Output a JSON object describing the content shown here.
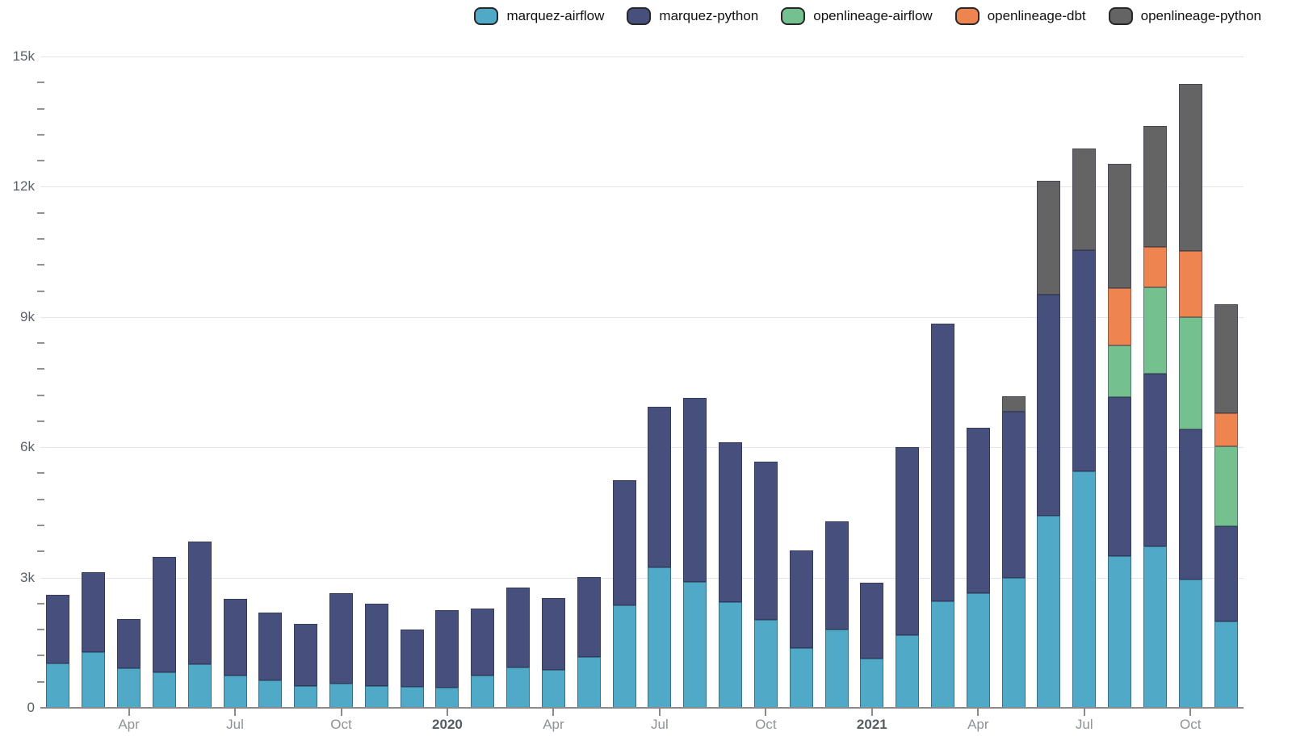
{
  "legend": {
    "items": [
      {
        "label": "marquez-airflow"
      },
      {
        "label": "marquez-python"
      },
      {
        "label": "openlineage-airflow"
      },
      {
        "label": "openlineage-dbt"
      },
      {
        "label": "openlineage-python"
      }
    ]
  },
  "chart_data": {
    "type": "bar",
    "stacked": true,
    "title": "",
    "xlabel": "",
    "ylabel": "",
    "ylim": [
      0,
      15000
    ],
    "ytick_step": 3000,
    "yminor_step": 600,
    "grid": true,
    "legend_position": "top-right",
    "ytick_labels": [
      {
        "value": 0,
        "label": "0"
      },
      {
        "value": 3000,
        "label": "3k"
      },
      {
        "value": 6000,
        "label": "6k"
      },
      {
        "value": 9000,
        "label": "9k"
      },
      {
        "value": 12000,
        "label": "12k"
      },
      {
        "value": 15000,
        "label": "15k"
      }
    ],
    "xticks": [
      {
        "bar_index": 2,
        "label": "Apr",
        "bold": false
      },
      {
        "bar_index": 5,
        "label": "Jul",
        "bold": false
      },
      {
        "bar_index": 8,
        "label": "Oct",
        "bold": false
      },
      {
        "bar_index": 11,
        "label": "2020",
        "bold": true
      },
      {
        "bar_index": 14,
        "label": "Apr",
        "bold": false
      },
      {
        "bar_index": 17,
        "label": "Jul",
        "bold": false
      },
      {
        "bar_index": 20,
        "label": "Oct",
        "bold": false
      },
      {
        "bar_index": 23,
        "label": "2021",
        "bold": true
      },
      {
        "bar_index": 26,
        "label": "Apr",
        "bold": false
      },
      {
        "bar_index": 29,
        "label": "Jul",
        "bold": false
      },
      {
        "bar_index": 32,
        "label": "Oct",
        "bold": false
      }
    ],
    "months": [
      "2019-02",
      "2019-03",
      "2019-04",
      "2019-05",
      "2019-06",
      "2019-07",
      "2019-08",
      "2019-09",
      "2019-10",
      "2019-11",
      "2019-12",
      "2020-01",
      "2020-02",
      "2020-03",
      "2020-04",
      "2020-05",
      "2020-06",
      "2020-07",
      "2020-08",
      "2020-09",
      "2020-10",
      "2020-11",
      "2020-12",
      "2021-01",
      "2021-02",
      "2021-03",
      "2021-04",
      "2021-05",
      "2021-06",
      "2021-07",
      "2021-08",
      "2021-09",
      "2021-10",
      "2021-11"
    ],
    "series": [
      {
        "name": "marquez-airflow",
        "color": "#4fa9c7",
        "values": [
          1030,
          1280,
          905,
          825,
          1000,
          740,
          640,
          510,
          550,
          500,
          480,
          460,
          740,
          935,
          870,
          1180,
          2360,
          3240,
          2900,
          2440,
          2030,
          1375,
          1800,
          1125,
          1675,
          2455,
          2640,
          2995,
          4430,
          5440,
          3490,
          3715,
          2950,
          1985
        ]
      },
      {
        "name": "marquez-python",
        "color": "#474f7d",
        "values": [
          1580,
          1845,
          1140,
          2660,
          2825,
          1775,
          1560,
          1425,
          2090,
          1900,
          1330,
          1790,
          1540,
          1835,
          1650,
          1835,
          2890,
          3700,
          4240,
          3670,
          3640,
          2250,
          2495,
          1765,
          4325,
          6400,
          3815,
          3825,
          5095,
          5100,
          3660,
          3985,
          3465,
          2195
        ]
      },
      {
        "name": "openlineage-airflow",
        "color": "#75c08f",
        "values": [
          0,
          0,
          0,
          0,
          0,
          0,
          0,
          0,
          0,
          0,
          0,
          0,
          0,
          0,
          0,
          0,
          0,
          0,
          0,
          0,
          0,
          0,
          0,
          0,
          0,
          0,
          0,
          0,
          0,
          0,
          1195,
          1985,
          2585,
          1850
        ]
      },
      {
        "name": "openlineage-dbt",
        "color": "#ee8450",
        "values": [
          0,
          0,
          0,
          0,
          0,
          0,
          0,
          0,
          0,
          0,
          0,
          0,
          0,
          0,
          0,
          0,
          0,
          0,
          0,
          0,
          0,
          0,
          0,
          0,
          0,
          0,
          0,
          0,
          0,
          0,
          1330,
          935,
          1530,
          760
        ]
      },
      {
        "name": "openlineage-python",
        "color": "#646464",
        "values": [
          0,
          0,
          0,
          0,
          0,
          0,
          0,
          0,
          0,
          0,
          0,
          0,
          0,
          0,
          0,
          0,
          0,
          0,
          0,
          0,
          0,
          0,
          0,
          0,
          0,
          0,
          0,
          350,
          2620,
          2350,
          2850,
          2775,
          3845,
          2510
        ]
      }
    ]
  },
  "colors": {
    "grid": "#e0e5f0",
    "axis": "#8a8a8a",
    "y_label": "#5b6068",
    "x_label": "#8f9298",
    "x_label_bold": "#575c63",
    "minor_tick": "#919191",
    "background": "#ffffff"
  }
}
